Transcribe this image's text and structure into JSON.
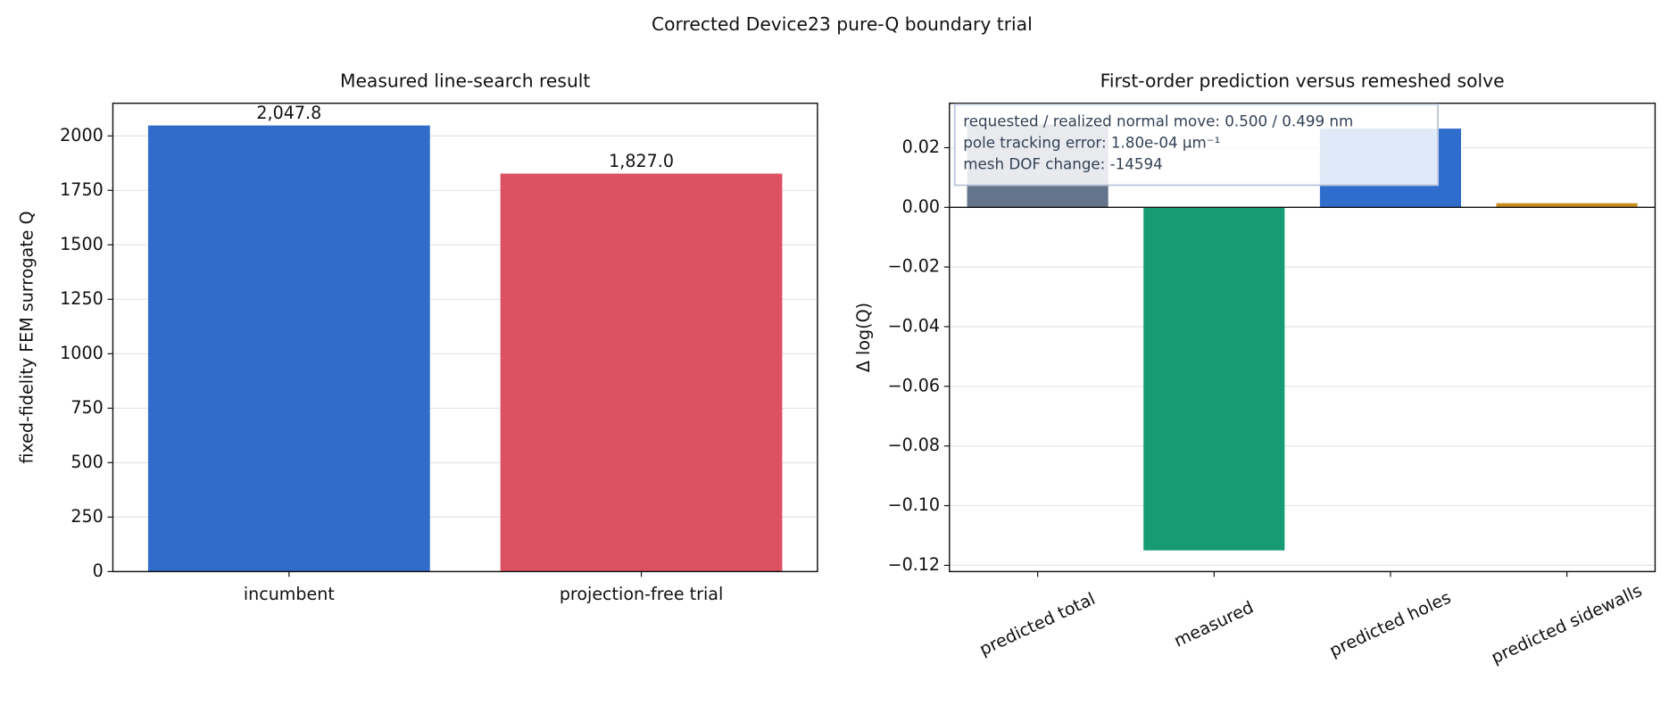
{
  "title": "Corrected Device23 pure-Q boundary trial",
  "chart_data": [
    {
      "type": "bar",
      "title": "Measured line-search result",
      "ylabel": "fixed-fidelity FEM surrogate Q",
      "categories": [
        "incumbent",
        "projection-free trial"
      ],
      "values": [
        2047.8,
        1827.0
      ],
      "value_labels": [
        "2,047.8",
        "1,827.0"
      ],
      "colors": [
        "#306dcb",
        "#dc5262"
      ],
      "ylim": [
        0,
        2150
      ],
      "yticks": [
        0,
        250,
        500,
        750,
        1000,
        1250,
        1500,
        1750,
        2000
      ],
      "grid": true
    },
    {
      "type": "bar",
      "title": "First-order prediction versus remeshed solve",
      "ylabel": "Δ log(Q)",
      "categories": [
        "predicted total",
        "measured",
        "predicted holes",
        "predicted sidewalls"
      ],
      "values": [
        0.0278,
        -0.115,
        0.0264,
        0.0014
      ],
      "colors": [
        "#64748b",
        "#169b73",
        "#2f6dcc",
        "#c98e1f"
      ],
      "ylim": [
        -0.1221,
        0.0349
      ],
      "yticks": [
        {
          "value": -0.12,
          "label": "−0.12"
        },
        {
          "value": -0.1,
          "label": "−0.10"
        },
        {
          "value": -0.08,
          "label": "−0.08"
        },
        {
          "value": -0.06,
          "label": "−0.06"
        },
        {
          "value": -0.04,
          "label": "−0.04"
        },
        {
          "value": -0.02,
          "label": "−0.02"
        },
        {
          "value": 0,
          "label": "0.00"
        },
        0.02
      ],
      "grid": true,
      "rotate_xlabels": true,
      "annotations": [
        "requested / realized normal move: 0.500 / 0.499 nm",
        "pole tracking error: 1.80e-04 μm⁻¹",
        "mesh DOF change: -14594"
      ]
    }
  ]
}
